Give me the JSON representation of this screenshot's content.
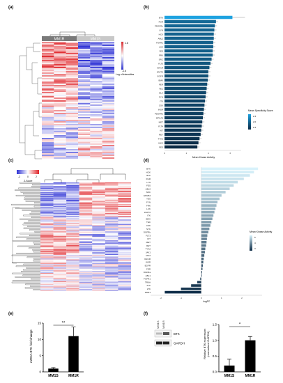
{
  "panel_labels": {
    "a": "(a)",
    "b": "(b)",
    "c": "(c)",
    "d": "(d)",
    "e": "(e)",
    "f": "(f)"
  },
  "panel_a": {
    "group_labels": [
      "MM1R",
      "MM1S"
    ],
    "legend_max": "1.6",
    "legend_min": "-1.6",
    "legend_caption": "Log of intensities"
  },
  "chart_data": [
    {
      "type": "bar",
      "panel": "b",
      "orientation": "horizontal",
      "categories": [
        "BTK",
        "FGR",
        "PDGFRb",
        "LYN",
        "HCK",
        "ABL2",
        "FGFR1",
        "LCK",
        "YES",
        "FRK",
        "SRC",
        "FLT3",
        "IGF1R",
        "ZAP70",
        "EGFR",
        "BMX",
        "FER",
        "TEC",
        "BLK",
        "FYN",
        "ITK",
        "CSK",
        "INSR",
        "PDGFRa",
        "EPHA3",
        "MET",
        "FLT4",
        "KIT",
        "RET",
        "TYK2",
        "JAK2",
        "FES"
      ],
      "values": [
        6.2,
        4.7,
        4.6,
        4.55,
        4.5,
        4.5,
        4.45,
        4.45,
        4.4,
        4.4,
        4.3,
        4.2,
        4.1,
        4.0,
        4.0,
        3.95,
        3.9,
        3.85,
        3.8,
        3.75,
        3.7,
        3.65,
        3.6,
        3.55,
        3.5,
        3.45,
        3.4,
        3.35,
        3.3,
        3.2,
        3.1,
        3.0
      ],
      "xlabel": "Mean Kinase Activity",
      "xticks": [
        "0",
        "2",
        "4",
        "6"
      ],
      "xlim": [
        0,
        7
      ],
      "colorbar_title": "Mean Specificity Score",
      "colorbar_ticks": [
        "2.4",
        "2.0",
        "1.5"
      ],
      "color_low": "#0b2a45",
      "color_high": "#1ea2e0"
    },
    {
      "type": "bar",
      "panel": "d",
      "orientation": "horizontal",
      "categories": [
        "BTK",
        "HCK",
        "BLK",
        "FGR",
        "LYN",
        "FES",
        "ABL2",
        "SRC",
        "EPHB4",
        "YES",
        "FYN",
        "FRK",
        "LCK",
        "ZAP70",
        "ITK",
        "BMX",
        "TEC",
        "CSK",
        "SYK",
        "PDGFRb",
        "FLT3",
        "KIT",
        "MET",
        "RET",
        "TYK2",
        "JAK1",
        "JAK2",
        "IGF1R",
        "INSR",
        "EGFR",
        "FER",
        "PDGFRa",
        "ABL1",
        "FGFR1",
        "TRKA",
        "ALK",
        "LTK",
        "DDR1"
      ],
      "values": [
        2.8,
        2.6,
        2.4,
        2.1,
        1.8,
        1.6,
        1.4,
        1.2,
        1.0,
        0.9,
        0.8,
        0.75,
        0.7,
        0.65,
        0.6,
        0.55,
        0.5,
        0.45,
        0.4,
        0.35,
        0.3,
        0.28,
        0.26,
        0.24,
        0.2,
        0.18,
        0.15,
        0.12,
        0.1,
        0.08,
        0.06,
        0.04,
        0.03,
        -0.05,
        -0.2,
        -0.5,
        -1.0,
        -1.8
      ],
      "xlabel": "LogFC",
      "xticks": [
        "-2",
        "-1",
        "0",
        "1",
        "2"
      ],
      "xlim": [
        -2.5,
        3
      ],
      "colorbar_title": "Mean Kinase Activity",
      "colorbar_ticks": [
        "5",
        "4",
        "3"
      ],
      "color_low": "#0b2a45",
      "color_high": "#d8f2fb"
    },
    {
      "type": "bar",
      "panel": "e",
      "categories": [
        "MM1S",
        "MM1R"
      ],
      "values": [
        1,
        11
      ],
      "errors": [
        0.3,
        2.8
      ],
      "ylabel": "mRNA  BTK fold change",
      "yticks": [
        "0",
        "5",
        "10",
        "15"
      ],
      "ylim": [
        0,
        15
      ],
      "significance": "**"
    },
    {
      "type": "bar",
      "panel": "f",
      "categories": [
        "MM1S",
        "MM1R"
      ],
      "values": [
        0.2,
        1.0
      ],
      "errors": [
        0.2,
        0.12
      ],
      "ylabel": "Relative BTK expression\n(normalised GAPDH)",
      "yticks": [
        "0.0",
        "0.5",
        "1.0",
        "1.5"
      ],
      "ylim": [
        0,
        1.5
      ],
      "significance": "*"
    }
  ],
  "panel_c": {
    "legend_ticks": [
      "-2",
      "0",
      "2"
    ],
    "legend_caption": "Z-Score"
  },
  "panel_f_blot": {
    "lane_labels": [
      "MM1S",
      "MM1R"
    ],
    "band_labels": [
      "BTK",
      "GAPDH"
    ]
  }
}
